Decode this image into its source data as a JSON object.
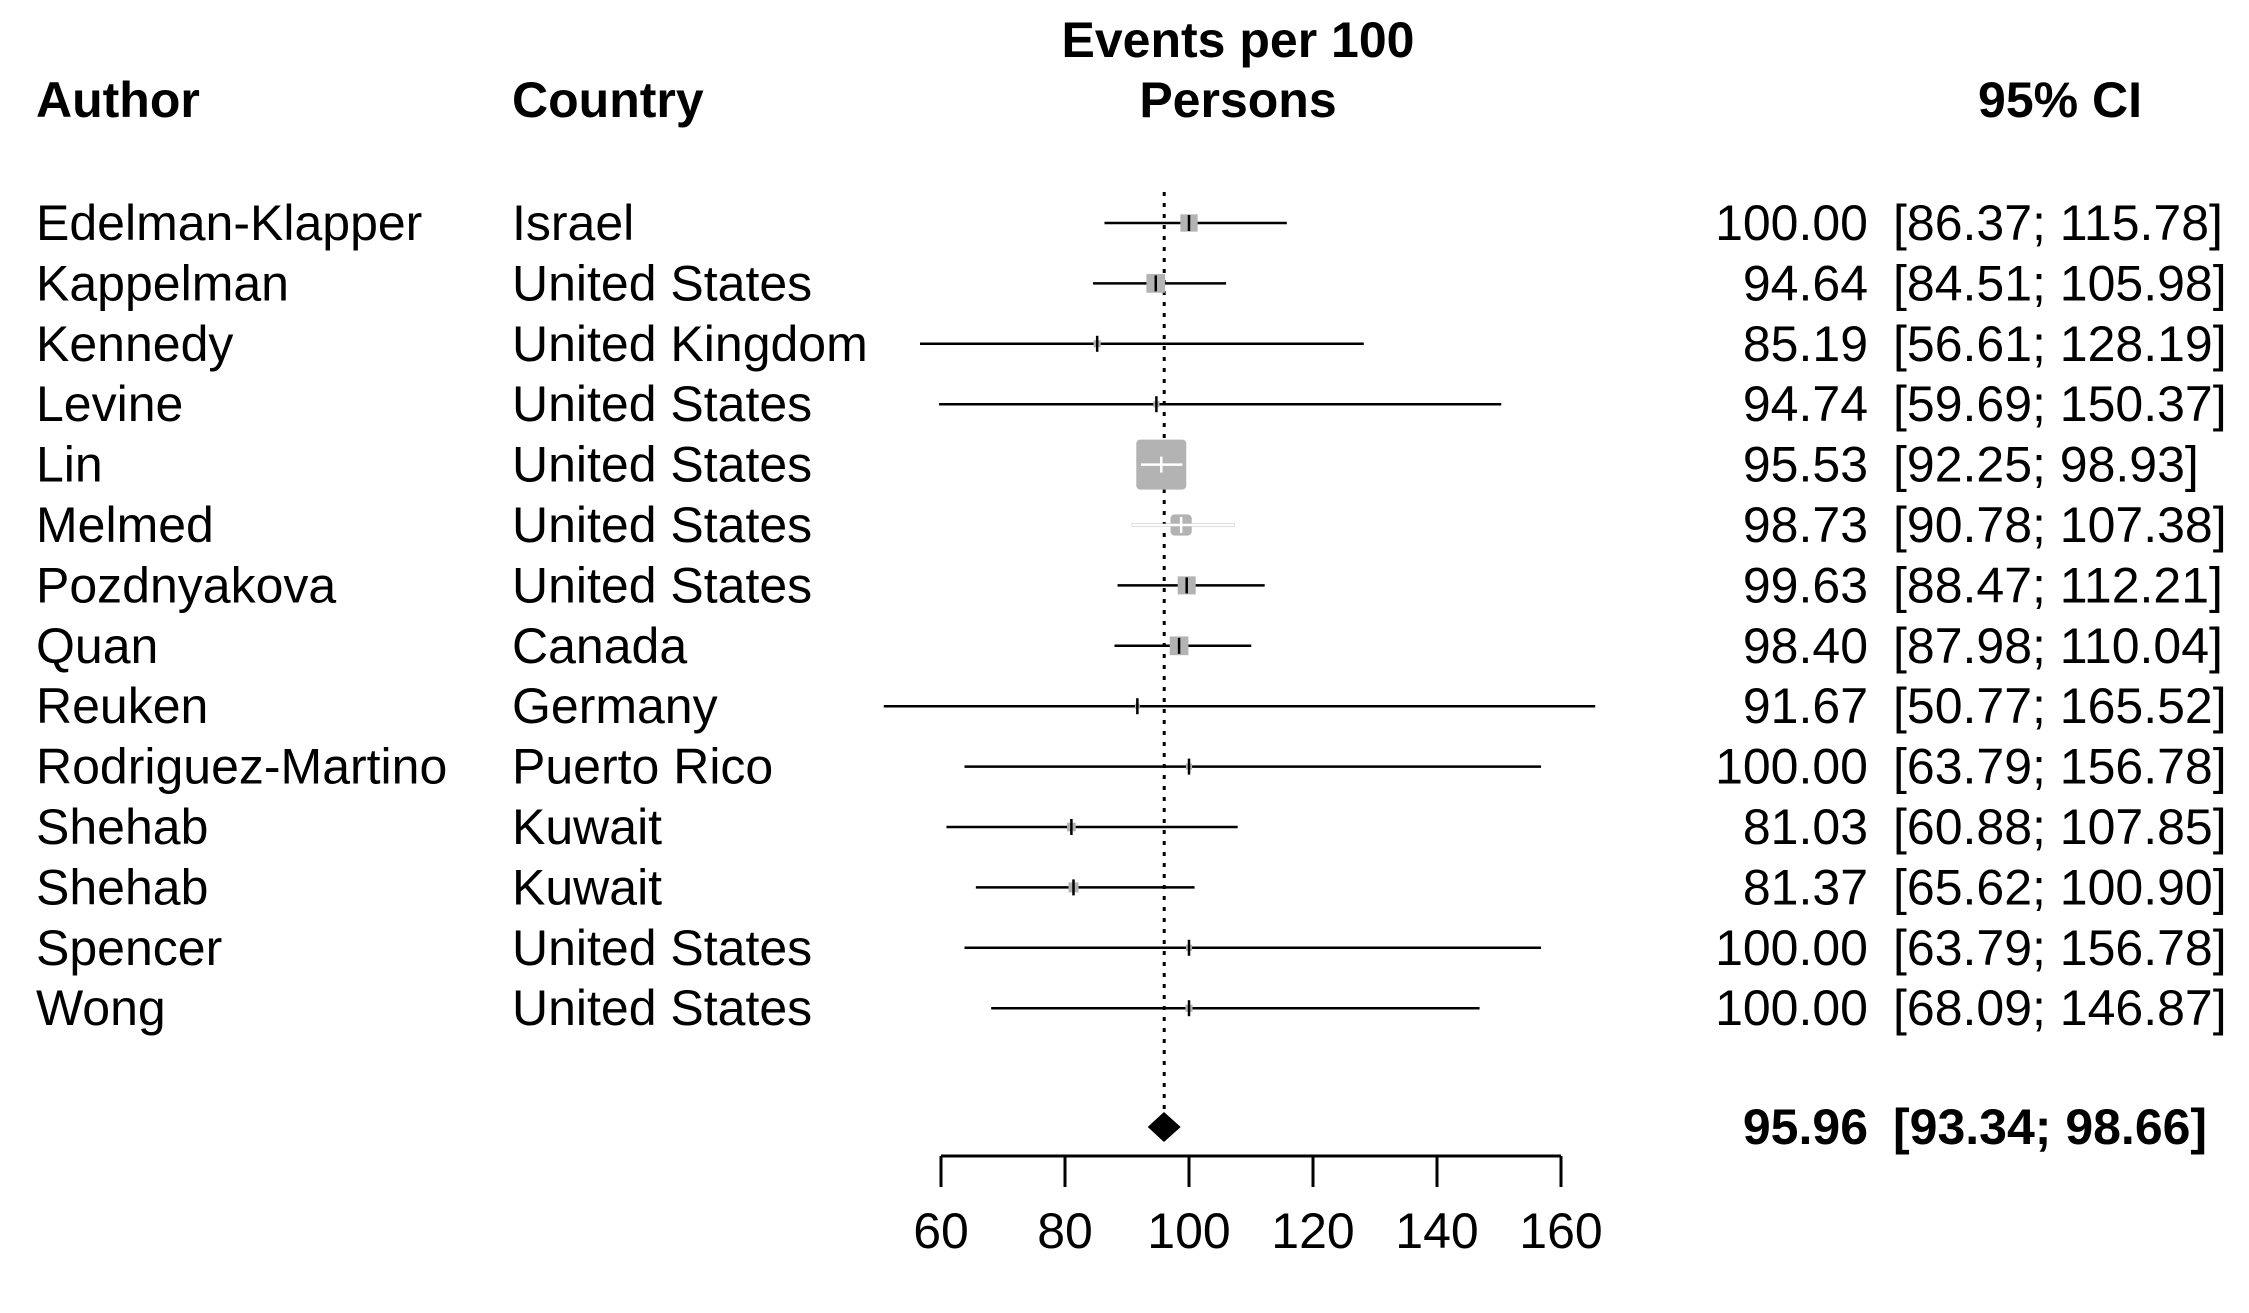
{
  "headers": {
    "author": "Author",
    "country": "Country",
    "effect_line1": "Events per 100",
    "effect_line2": "Persons",
    "ci": "95% CI"
  },
  "chart_data": {
    "type": "forest",
    "xlim": [
      60,
      160
    ],
    "ticks": [
      60,
      80,
      100,
      120,
      140,
      160
    ],
    "tick_labels": [
      "60",
      "80",
      "100",
      "120",
      "140",
      "160"
    ],
    "reference_line": 96.0,
    "reference_line_style": "dotted",
    "studies": [
      {
        "author": "Edelman-Klapper",
        "country": "Israel",
        "est": 100.0,
        "lo": 86.37,
        "hi": 115.78,
        "weight": 0.12,
        "est_text": "100.00",
        "ci_text": "[86.37; 115.78]"
      },
      {
        "author": "Kappelman",
        "country": "United States",
        "est": 94.64,
        "lo": 84.51,
        "hi": 105.98,
        "weight": 0.14,
        "est_text": "94.64",
        "ci_text": "[84.51; 105.98]"
      },
      {
        "author": "Kennedy",
        "country": "United Kingdom",
        "est": 85.19,
        "lo": 56.61,
        "hi": 128.19,
        "weight": 0.02,
        "est_text": "85.19",
        "ci_text": "[56.61; 128.19]"
      },
      {
        "author": "Levine",
        "country": "United States",
        "est": 94.74,
        "lo": 59.69,
        "hi": 150.37,
        "weight": 0.015,
        "est_text": "94.74",
        "ci_text": "[59.69; 150.37]"
      },
      {
        "author": "Lin",
        "country": "United States",
        "est": 95.53,
        "lo": 92.25,
        "hi": 98.93,
        "weight": 1.0,
        "est_text": "95.53",
        "ci_text": "[92.25;  98.93]"
      },
      {
        "author": "Melmed",
        "country": "United States",
        "est": 98.73,
        "lo": 90.78,
        "hi": 107.38,
        "weight": 0.18,
        "est_text": "98.73",
        "ci_text": "[90.78; 107.38]"
      },
      {
        "author": "Pozdnyakova",
        "country": "United States",
        "est": 99.63,
        "lo": 88.47,
        "hi": 112.21,
        "weight": 0.13,
        "est_text": "99.63",
        "ci_text": "[88.47; 112.21]"
      },
      {
        "author": "Quan",
        "country": "Canada",
        "est": 98.4,
        "lo": 87.98,
        "hi": 110.04,
        "weight": 0.14,
        "est_text": "98.40",
        "ci_text": "[87.98; 110.04]"
      },
      {
        "author": "Reuken",
        "country": "Germany",
        "est": 91.67,
        "lo": 50.77,
        "hi": 165.52,
        "weight": 0.01,
        "est_text": "91.67",
        "ci_text": "[50.77; 165.52]"
      },
      {
        "author": "Rodriguez-Martino",
        "country": "Puerto Rico",
        "est": 100.0,
        "lo": 63.79,
        "hi": 156.78,
        "weight": 0.015,
        "est_text": "100.00",
        "ci_text": "[63.79; 156.78]"
      },
      {
        "author": "Shehab",
        "country": "Kuwait",
        "est": 81.03,
        "lo": 60.88,
        "hi": 107.85,
        "weight": 0.03,
        "est_text": "81.03",
        "ci_text": "[60.88; 107.85]"
      },
      {
        "author": "Shehab",
        "country": "Kuwait",
        "est": 81.37,
        "lo": 65.62,
        "hi": 100.9,
        "weight": 0.04,
        "est_text": "81.37",
        "ci_text": "[65.62; 100.90]"
      },
      {
        "author": "Spencer",
        "country": "United States",
        "est": 100.0,
        "lo": 63.79,
        "hi": 156.78,
        "weight": 0.015,
        "est_text": "100.00",
        "ci_text": "[63.79; 156.78]"
      },
      {
        "author": "Wong",
        "country": "United States",
        "est": 100.0,
        "lo": 68.09,
        "hi": 146.87,
        "weight": 0.02,
        "est_text": "100.00",
        "ci_text": "[68.09; 146.87]"
      }
    ],
    "summary": {
      "est": 95.96,
      "lo": 93.34,
      "hi": 98.66,
      "est_text": "95.96",
      "ci_text": "[93.34;  98.66]"
    }
  }
}
